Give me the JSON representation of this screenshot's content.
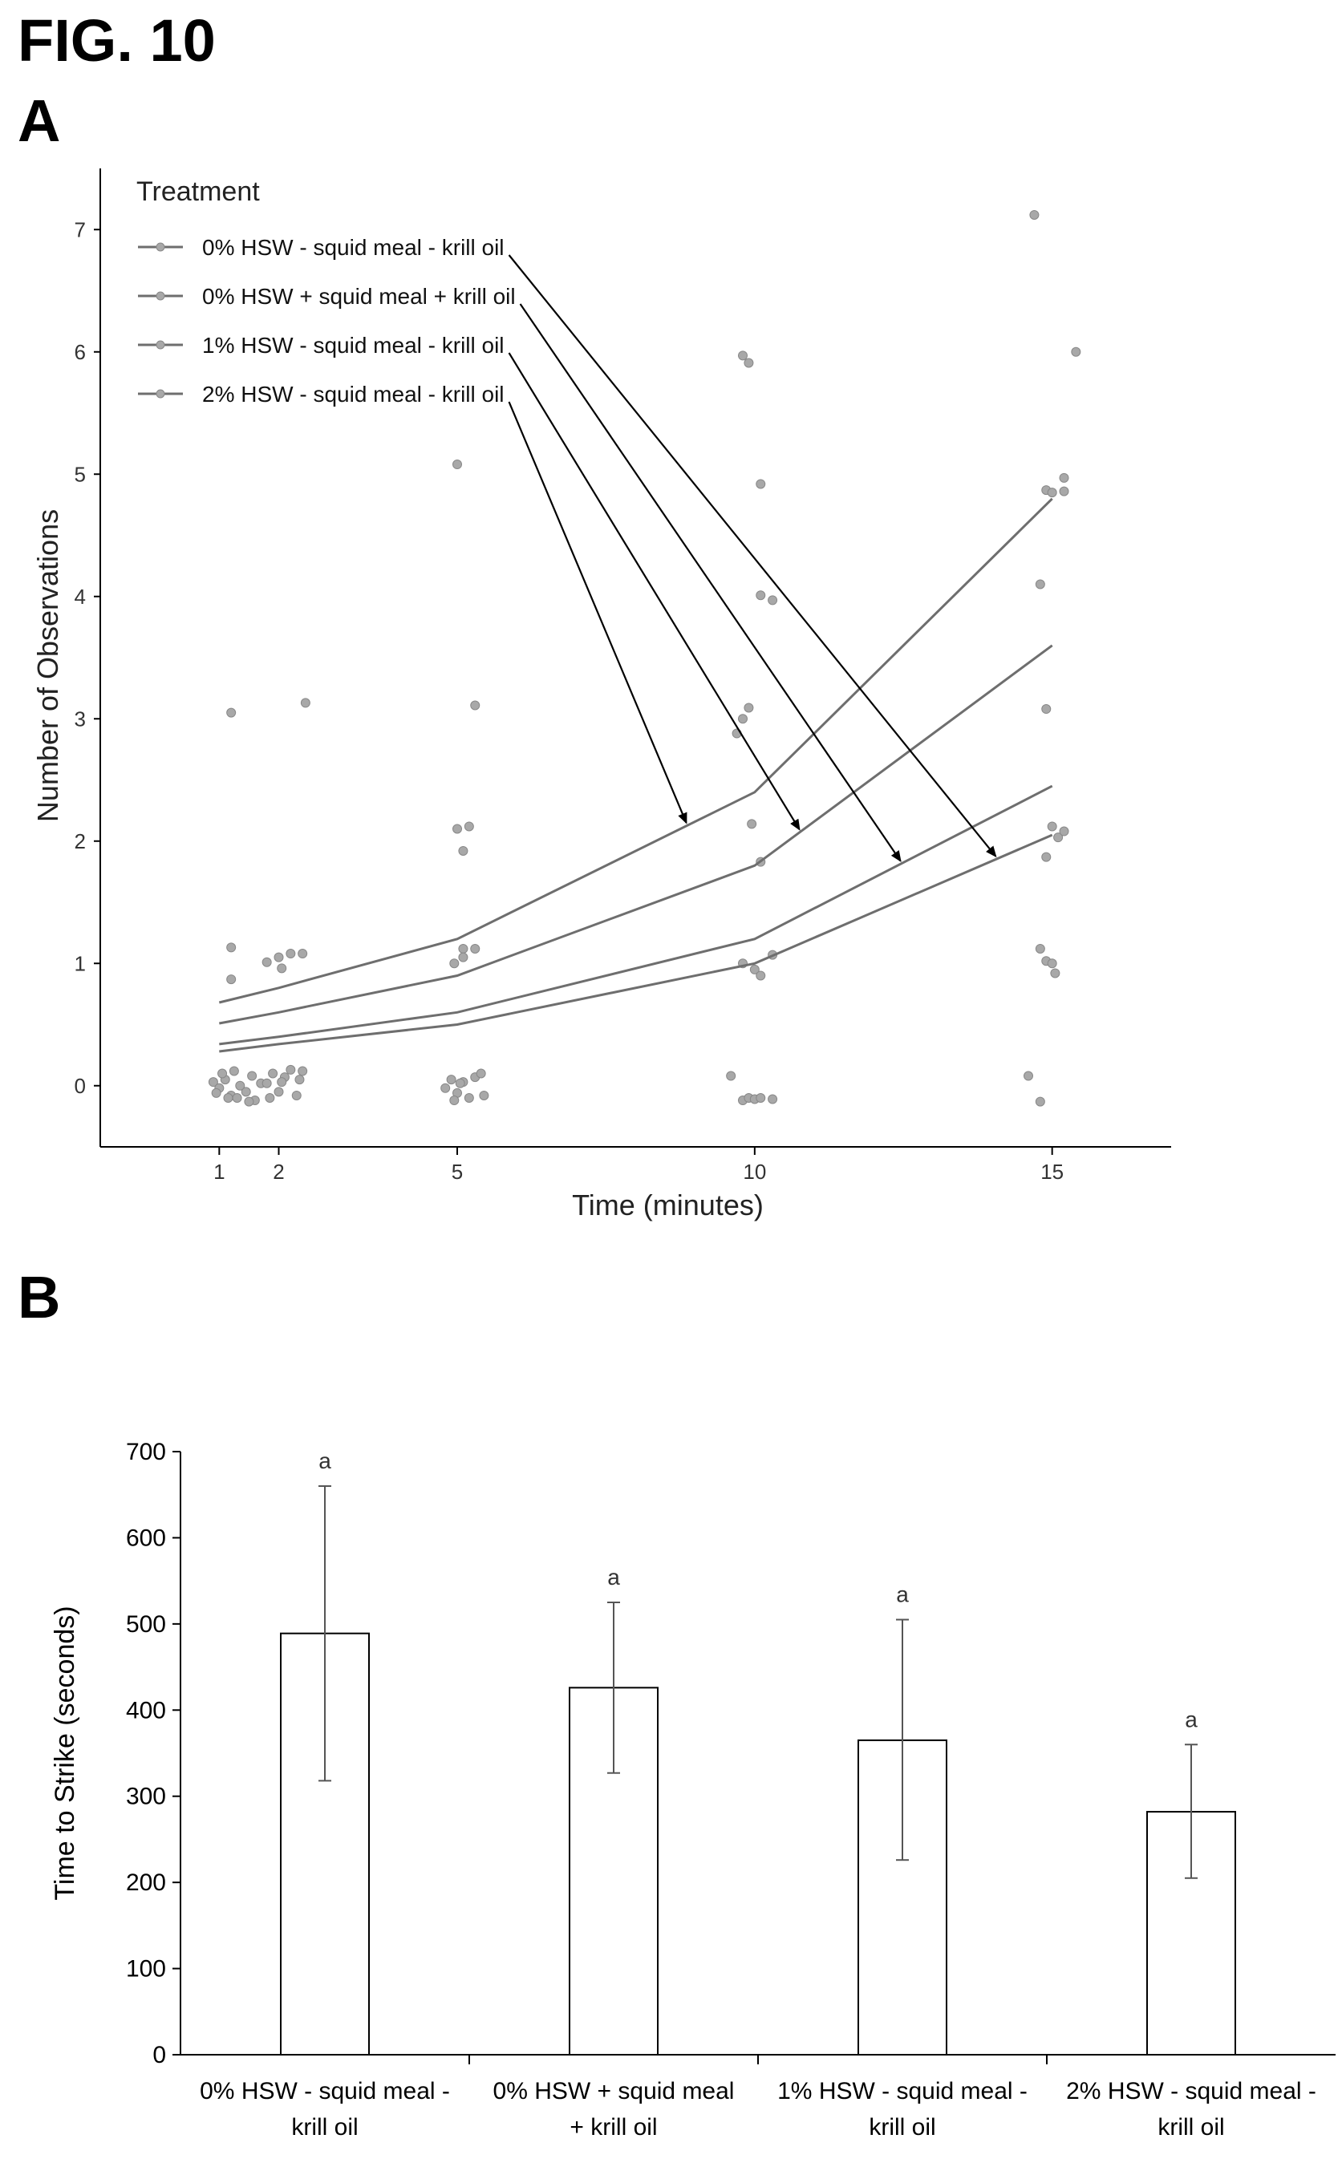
{
  "figure": {
    "title": "FIG. 10",
    "panel_a_label": "A",
    "panel_b_label": "B"
  },
  "chart_data": [
    {
      "type": "line",
      "panel": "A",
      "xlabel": "Time (minutes)",
      "ylabel": "Number of Observations",
      "legend_title": "Treatment",
      "legend_position": "top-left",
      "xlim": [
        -1,
        17
      ],
      "ylim": [
        -0.5,
        7.5
      ],
      "x_ticks": [
        1,
        2,
        5,
        10,
        15
      ],
      "y_ticks": [
        0,
        1,
        2,
        3,
        4,
        5,
        6,
        7
      ],
      "x": [
        1,
        2,
        5,
        10,
        15
      ],
      "series": [
        {
          "name": "0% HSW - squid meal - krill oil",
          "values": [
            0.28,
            0.34,
            0.5,
            1.0,
            2.05
          ]
        },
        {
          "name": "0% HSW + squid meal + krill oil",
          "values": [
            0.34,
            0.4,
            0.6,
            1.2,
            2.45
          ]
        },
        {
          "name": "1% HSW - squid meal - krill oil",
          "values": [
            0.51,
            0.6,
            0.9,
            1.8,
            3.6
          ]
        },
        {
          "name": "2% HSW - squid meal - krill oil",
          "values": [
            0.68,
            0.8,
            1.2,
            2.4,
            4.8
          ]
        }
      ],
      "observations": [
        [
          0.9,
          0.03
        ],
        [
          1.0,
          -0.02
        ],
        [
          1.1,
          0.05
        ],
        [
          1.2,
          -0.08
        ],
        [
          1.25,
          0.12
        ],
        [
          1.3,
          -0.1
        ],
        [
          1.45,
          -0.05
        ],
        [
          1.55,
          0.08
        ],
        [
          1.6,
          -0.12
        ],
        [
          1.7,
          0.02
        ],
        [
          0.95,
          -0.06
        ],
        [
          1.05,
          0.1
        ],
        [
          1.35,
          0.0
        ],
        [
          1.5,
          -0.13
        ],
        [
          1.15,
          -0.1
        ],
        [
          1.8,
          0.02
        ],
        [
          1.9,
          0.1
        ],
        [
          2.0,
          -0.05
        ],
        [
          2.1,
          0.07
        ],
        [
          2.2,
          0.13
        ],
        [
          2.3,
          -0.08
        ],
        [
          2.35,
          0.05
        ],
        [
          2.4,
          0.12
        ],
        [
          1.85,
          -0.1
        ],
        [
          2.05,
          0.03
        ],
        [
          1.2,
          3.05
        ],
        [
          2.45,
          3.13
        ],
        [
          1.2,
          1.13
        ],
        [
          1.2,
          0.87
        ],
        [
          1.8,
          1.01
        ],
        [
          2.0,
          1.05
        ],
        [
          2.05,
          0.96
        ],
        [
          2.2,
          1.08
        ],
        [
          2.4,
          1.08
        ],
        [
          4.8,
          -0.02
        ],
        [
          4.9,
          0.05
        ],
        [
          5.0,
          -0.06
        ],
        [
          5.1,
          0.03
        ],
        [
          5.2,
          -0.1
        ],
        [
          5.3,
          0.07
        ],
        [
          5.4,
          0.1
        ],
        [
          5.45,
          -0.08
        ],
        [
          4.95,
          -0.12
        ],
        [
          5.05,
          0.02
        ],
        [
          5.0,
          5.08
        ],
        [
          5.3,
          3.11
        ],
        [
          5.0,
          2.1
        ],
        [
          5.2,
          2.12
        ],
        [
          5.1,
          1.92
        ],
        [
          4.95,
          1.0
        ],
        [
          5.1,
          1.12
        ],
        [
          5.3,
          1.12
        ],
        [
          5.1,
          1.05
        ],
        [
          9.6,
          0.08
        ],
        [
          9.8,
          -0.12
        ],
        [
          9.9,
          -0.1
        ],
        [
          10.0,
          -0.11
        ],
        [
          10.1,
          -0.1
        ],
        [
          10.3,
          -0.11
        ],
        [
          9.8,
          5.97
        ],
        [
          9.9,
          5.91
        ],
        [
          10.1,
          4.92
        ],
        [
          10.1,
          4.01
        ],
        [
          10.3,
          3.97
        ],
        [
          9.7,
          2.88
        ],
        [
          9.8,
          3.0
        ],
        [
          9.9,
          3.09
        ],
        [
          9.95,
          2.14
        ],
        [
          10.1,
          1.83
        ],
        [
          9.8,
          1.0
        ],
        [
          10.0,
          0.95
        ],
        [
          10.1,
          0.9
        ],
        [
          10.3,
          1.07
        ],
        [
          14.6,
          0.08
        ],
        [
          14.8,
          -0.13
        ],
        [
          14.7,
          7.12
        ],
        [
          15.4,
          6.0
        ],
        [
          15.2,
          4.97
        ],
        [
          14.9,
          4.87
        ],
        [
          15.0,
          4.85
        ],
        [
          15.2,
          4.86
        ],
        [
          14.8,
          4.1
        ],
        [
          14.9,
          3.08
        ],
        [
          15.0,
          2.12
        ],
        [
          15.1,
          2.03
        ],
        [
          15.2,
          2.08
        ],
        [
          14.9,
          1.87
        ],
        [
          14.8,
          1.12
        ],
        [
          14.9,
          1.02
        ],
        [
          15.0,
          1.0
        ],
        [
          15.05,
          0.92
        ]
      ]
    },
    {
      "type": "bar",
      "panel": "B",
      "ylabel": "Time to Strike (seconds)",
      "ylim": [
        0,
        700
      ],
      "y_ticks": [
        0,
        100,
        200,
        300,
        400,
        500,
        600,
        700
      ],
      "categories": [
        [
          "0% HSW - squid meal -",
          "krill oil"
        ],
        [
          "0% HSW + squid meal",
          "+ krill oil"
        ],
        [
          "1% HSW - squid meal -",
          "krill oil"
        ],
        [
          "2% HSW - squid meal -",
          "krill oil"
        ]
      ],
      "values": [
        489,
        426,
        365,
        282
      ],
      "error_low": [
        318,
        327,
        226,
        205
      ],
      "error_high": [
        660,
        525,
        505,
        360
      ],
      "significance_labels": [
        "a",
        "a",
        "a",
        "a"
      ]
    }
  ]
}
